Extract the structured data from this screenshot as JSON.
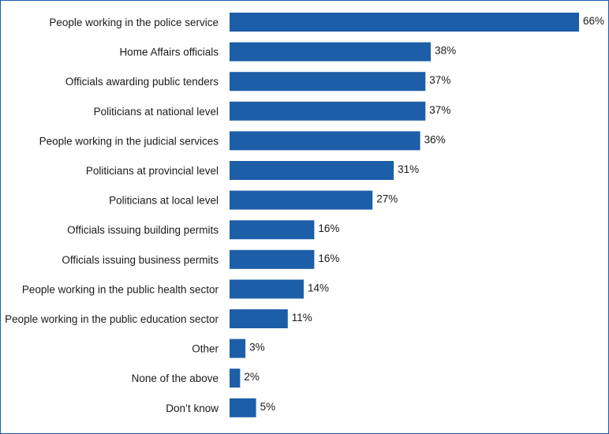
{
  "chart_data": {
    "type": "bar",
    "orientation": "horizontal",
    "categories": [
      "People working in the police service",
      "Home Affairs officials",
      "Officials awarding public tenders",
      "Politicians at national level",
      "People working in the judicial services",
      "Politicians at provincial level",
      "Politicians at local level",
      "Officials issuing building permits",
      "Officials issuing business permits",
      "People working in the public health sector",
      "People working in the public education sector",
      "Other",
      "None of the above",
      "Don’t know"
    ],
    "values": [
      66,
      38,
      37,
      37,
      36,
      31,
      27,
      16,
      16,
      14,
      11,
      3,
      2,
      5
    ],
    "value_labels": [
      "66%",
      "38%",
      "37%",
      "37%",
      "36%",
      "31%",
      "27%",
      "16%",
      "16%",
      "14%",
      "11%",
      "3%",
      "2%",
      "5%"
    ],
    "unit": "%",
    "title": "",
    "xlabel": "",
    "ylabel": "",
    "xlim": [
      0,
      66
    ],
    "grid": false,
    "legend": "none",
    "bar_color": "#1d5ea8",
    "border_color": "#1d5ea8"
  }
}
